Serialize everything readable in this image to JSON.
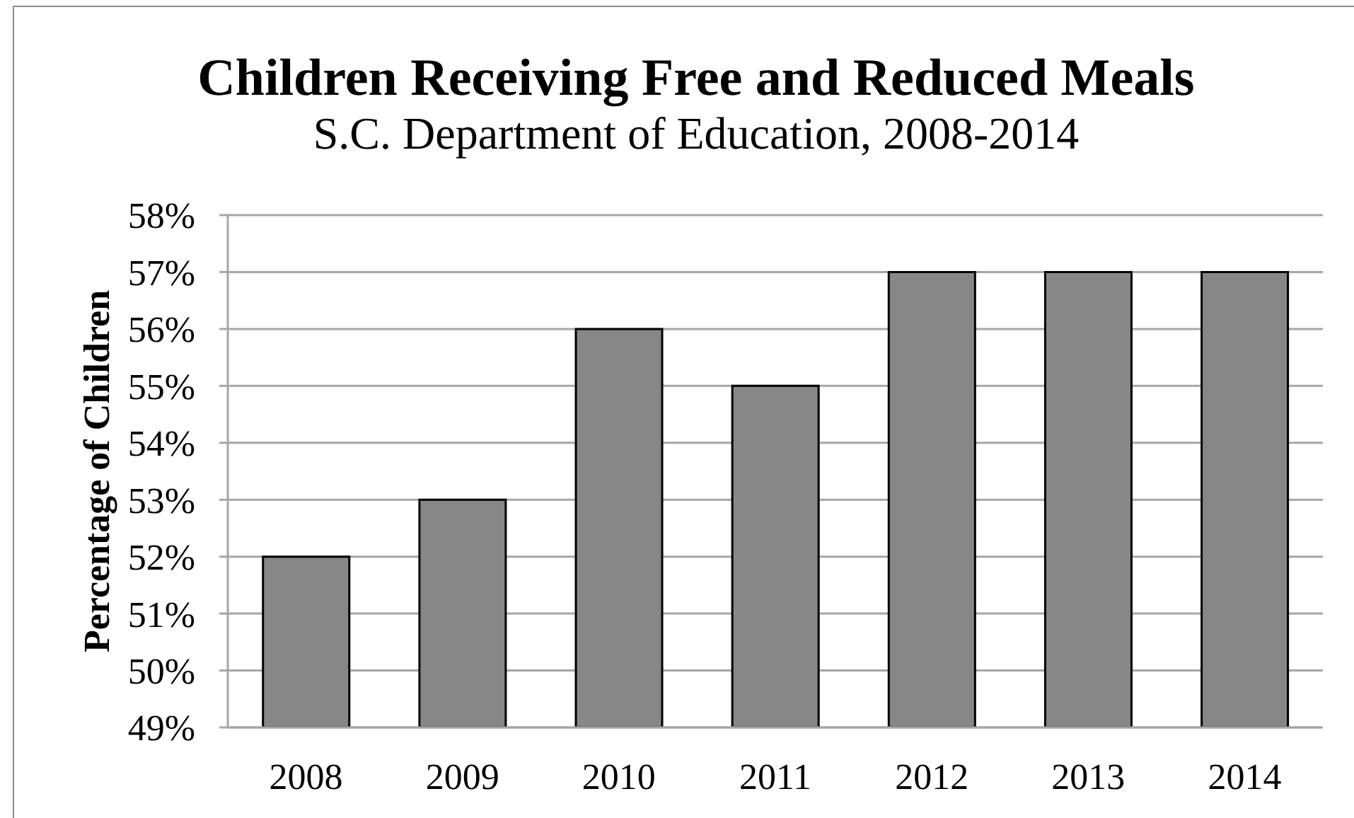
{
  "chart_data": {
    "type": "bar",
    "title": "Children Receiving Free and Reduced Meals",
    "subtitle": "S.C. Department of Education, 2008-2014",
    "ylabel": "Percentage of Children",
    "categories": [
      "2008",
      "2009",
      "2010",
      "2011",
      "2012",
      "2013",
      "2014"
    ],
    "values": [
      52,
      53,
      56,
      55,
      57,
      57,
      57
    ],
    "color": "#878787",
    "ylim": [
      49,
      58
    ],
    "yticks": [
      {
        "value": 49,
        "label": "49%"
      },
      {
        "value": 50,
        "label": "50%"
      },
      {
        "value": 51,
        "label": "51%"
      },
      {
        "value": 52,
        "label": "52%"
      },
      {
        "value": 53,
        "label": "53%"
      },
      {
        "value": 54,
        "label": "54%"
      },
      {
        "value": 55,
        "label": "55%"
      },
      {
        "value": 56,
        "label": "56%"
      },
      {
        "value": 57,
        "label": "57%"
      },
      {
        "value": 58,
        "label": "58%"
      }
    ],
    "grid": "y"
  }
}
